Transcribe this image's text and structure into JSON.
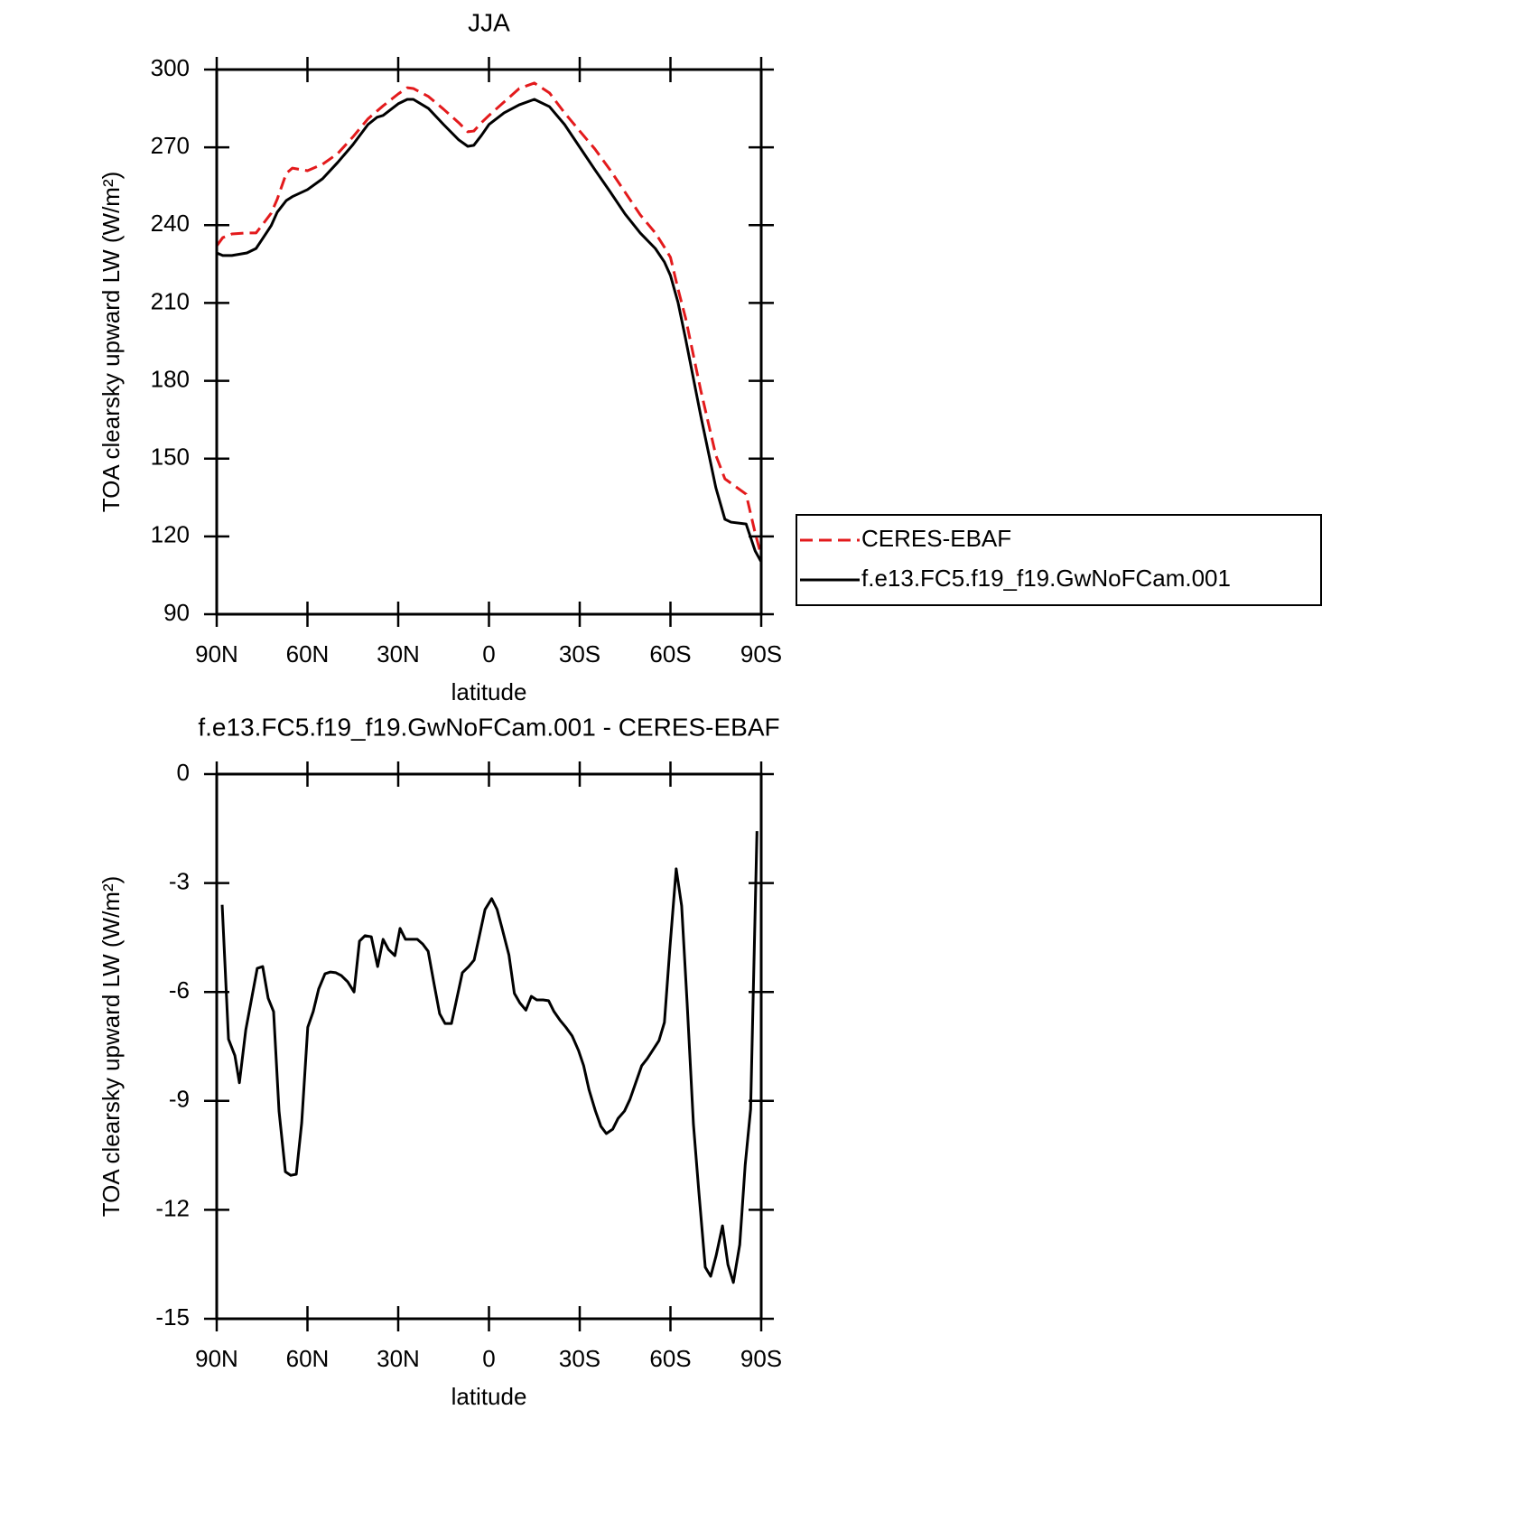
{
  "chart_data": [
    {
      "type": "line",
      "title": "JJA",
      "x_label": "latitude",
      "y_label": "TOA clearsky upward LW (W/m²)",
      "xlim": [
        90,
        -90
      ],
      "xticks": [
        {
          "value": 90,
          "label": "90N"
        },
        {
          "value": 60,
          "label": "60N"
        },
        {
          "value": 30,
          "label": "30N"
        },
        0,
        {
          "value": -30,
          "label": "30S"
        },
        {
          "value": -60,
          "label": "60S"
        },
        {
          "value": -90,
          "label": "90S"
        }
      ],
      "ylim": [
        90,
        300
      ],
      "yticks": [
        90,
        120,
        150,
        180,
        210,
        240,
        270,
        300
      ],
      "legend": "right",
      "x": [
        90,
        88,
        85,
        80,
        77,
        75,
        72,
        70,
        67,
        65,
        60,
        55,
        50,
        45,
        40,
        37,
        35,
        30,
        27,
        25,
        20,
        15,
        10,
        7,
        5,
        2.5,
        0,
        -5,
        -10,
        -15,
        -20,
        -25,
        -30,
        -35,
        -40,
        -45,
        -50,
        -55,
        -58,
        -60,
        -62.5,
        -65,
        -70,
        -75,
        -78,
        -80,
        -85,
        -88,
        -90
      ],
      "series": [
        {
          "name": "CERES-EBAF",
          "color": "#e31a1c",
          "dashed": true,
          "values": [
            232,
            235.2,
            236.6,
            237,
            237,
            240,
            244.6,
            250,
            260,
            262,
            261,
            263.5,
            267.6,
            274,
            281,
            284,
            286,
            290.6,
            293,
            292.7,
            289.6,
            284.7,
            279.5,
            276,
            276.3,
            279.5,
            282.3,
            287.5,
            292.7,
            294.8,
            291,
            283.3,
            276.3,
            269.4,
            261.4,
            252.7,
            244,
            237,
            231.5,
            227.6,
            215.4,
            204.2,
            176.4,
            151.3,
            142.2,
            140.5,
            136.3,
            121.3,
            112.6
          ]
        },
        {
          "name": "f.e13.FC5.f19_f19.GwNoFCam.001",
          "color": "#000000",
          "dashed": false,
          "values": [
            229.3,
            228.3,
            228.3,
            229.3,
            231,
            234.5,
            239.8,
            245,
            249.5,
            251,
            253.7,
            257.9,
            264.2,
            271,
            278.8,
            281.6,
            282.3,
            286.8,
            288.5,
            288.5,
            285,
            278.8,
            272.9,
            270.4,
            270.8,
            274.6,
            278.8,
            283.3,
            286.4,
            288.5,
            285.7,
            278.8,
            270.1,
            261.4,
            253,
            244.3,
            237,
            231,
            225.8,
            220.6,
            210.2,
            196.2,
            166.6,
            138.8,
            126.6,
            125.5,
            124.8,
            114.4,
            110.2
          ]
        }
      ]
    },
    {
      "type": "line",
      "title": "f.e13.FC5.f19_f19.GwNoFCam.001 - CERES-EBAF",
      "x_label": "latitude",
      "y_label": "TOA clearsky upward LW (W/m²)",
      "xlim": [
        90,
        -90
      ],
      "xticks": [
        {
          "value": 90,
          "label": "90N"
        },
        {
          "value": 60,
          "label": "60N"
        },
        {
          "value": 30,
          "label": "30N"
        },
        0,
        {
          "value": -30,
          "label": "30S"
        },
        {
          "value": -60,
          "label": "60S"
        },
        {
          "value": -90,
          "label": "90S"
        }
      ],
      "ylim": [
        -15,
        0
      ],
      "yticks": [
        -15,
        -12,
        -9,
        -6,
        -3,
        0
      ],
      "x": [
        88.2,
        86.1,
        84.0,
        82.5,
        80.4,
        76.6,
        74.8,
        73.0,
        71.2,
        69.4,
        67.3,
        65.5,
        63.7,
        61.9,
        59.9,
        58.1,
        56.3,
        54.2,
        52.4,
        50.6,
        48.8,
        46.7,
        44.6,
        42.8,
        41.0,
        38.9,
        36.8,
        35.0,
        33.2,
        31.1,
        29.4,
        27.6,
        25.5,
        23.7,
        21.9,
        20.1,
        18.1,
        16.3,
        14.5,
        12.4,
        10.6,
        8.8,
        6.7,
        4.9,
        3.1,
        1.3,
        -0.9,
        -2.7,
        -4.5,
        -6.6,
        -8.4,
        -10.2,
        -12.2,
        -14.0,
        -15.8,
        -17.9,
        -19.7,
        -21.5,
        -23.6,
        -25.4,
        -27.5,
        -29.6,
        -31.3,
        -33.1,
        -35.2,
        -37.0,
        -38.8,
        -40.9,
        -42.7,
        -44.8,
        -46.6,
        -48.4,
        -50.5,
        -52.3,
        -54.1,
        -56.2,
        -58.0,
        -59.8,
        -61.9,
        -63.7,
        -65.5,
        -67.6,
        -69.4,
        -71.5,
        -73.3,
        -75.1,
        -77.2,
        -79.0,
        -80.8,
        -82.9,
        -84.7,
        -86.5,
        -88.6
      ],
      "color": "#000000",
      "values": [
        -3.6,
        -7.3,
        -7.75,
        -8.5,
        -7.05,
        -5.35,
        -5.3,
        -6.17,
        -6.54,
        -9.28,
        -10.95,
        -11.05,
        -11.02,
        -9.6,
        -6.97,
        -6.54,
        -5.92,
        -5.5,
        -5.45,
        -5.47,
        -5.55,
        -5.72,
        -6.0,
        -4.6,
        -4.45,
        -4.48,
        -5.3,
        -4.55,
        -4.83,
        -5.0,
        -4.25,
        -4.55,
        -4.55,
        -4.55,
        -4.68,
        -4.88,
        -5.8,
        -6.6,
        -6.87,
        -6.87,
        -6.17,
        -5.47,
        -5.3,
        -5.12,
        -4.43,
        -3.73,
        -3.43,
        -3.73,
        -4.3,
        -4.98,
        -6.04,
        -6.3,
        -6.5,
        -6.12,
        -6.22,
        -6.22,
        -6.24,
        -6.54,
        -6.79,
        -6.97,
        -7.21,
        -7.61,
        -8.03,
        -8.7,
        -9.28,
        -9.7,
        -9.9,
        -9.78,
        -9.48,
        -9.28,
        -8.96,
        -8.53,
        -8.03,
        -7.84,
        -7.61,
        -7.34,
        -6.84,
        -4.8,
        -2.61,
        -3.63,
        -6.29,
        -9.65,
        -11.52,
        -13.58,
        -13.83,
        -13.26,
        -12.44,
        -13.51,
        -14.0,
        -12.96,
        -10.77,
        -9.23,
        -1.57
      ]
    }
  ]
}
